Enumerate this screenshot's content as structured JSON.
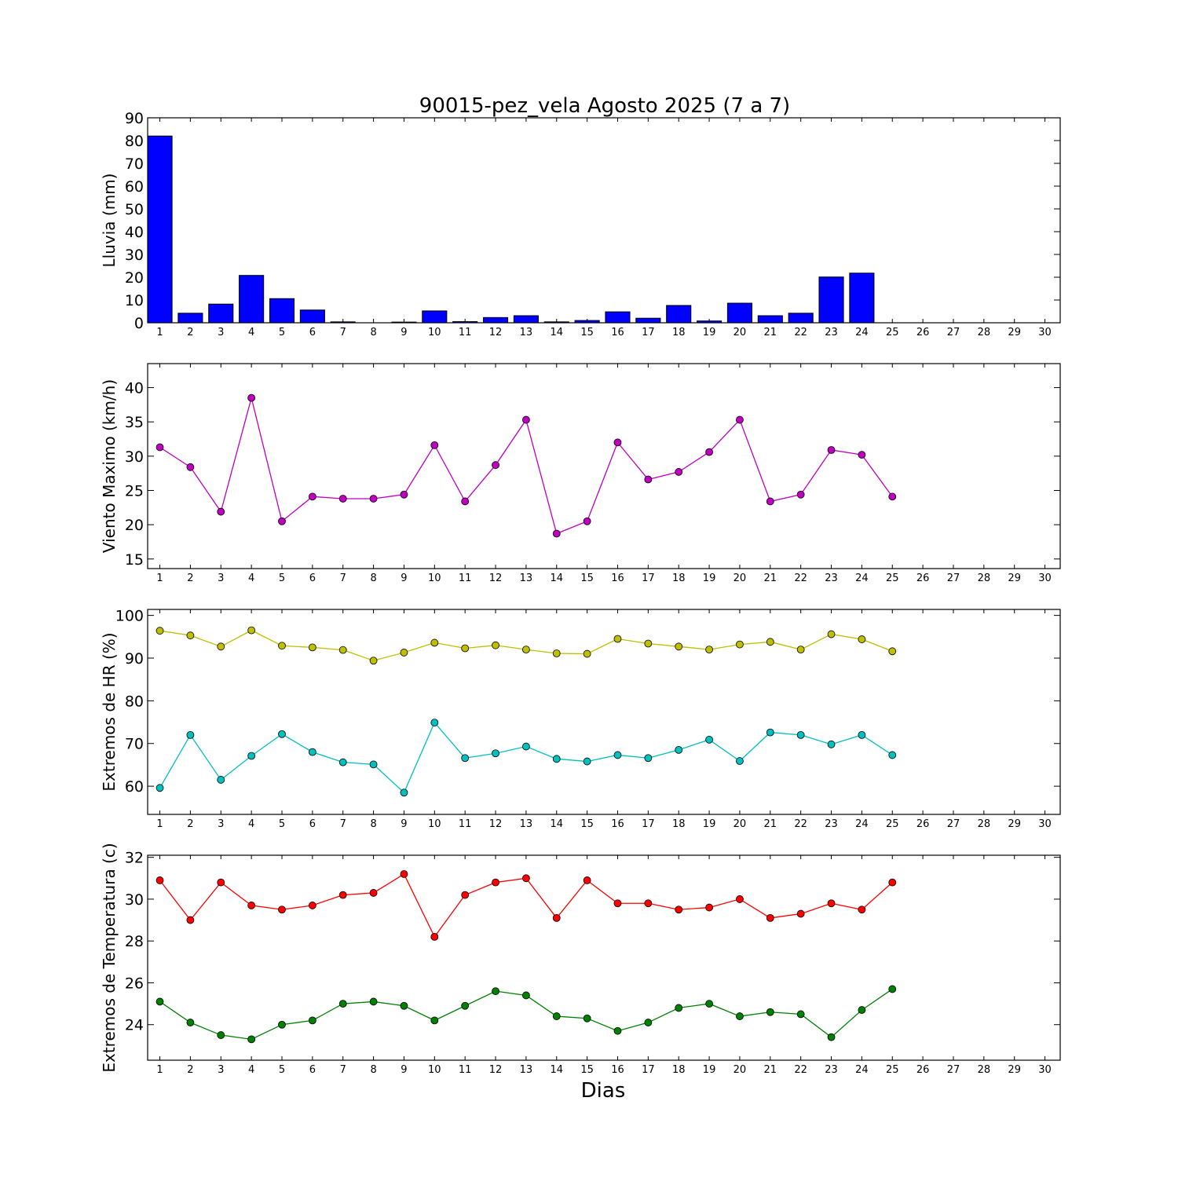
{
  "chart_data": [
    {
      "id": "rain",
      "type": "bar",
      "title": "90015-pez_vela Agosto 2025  (7 a 7)",
      "ylabel": "Lluvia (mm)",
      "xlabel": "",
      "categories": [
        "1",
        "2",
        "3",
        "4",
        "5",
        "6",
        "7",
        "8",
        "9",
        "10",
        "11",
        "12",
        "13",
        "14",
        "15",
        "16",
        "17",
        "18",
        "19",
        "20",
        "21",
        "22",
        "23",
        "24",
        "25",
        "26",
        "27",
        "28",
        "29",
        "30"
      ],
      "x": [
        1,
        2,
        3,
        4,
        5,
        6,
        7,
        8,
        9,
        10,
        11,
        12,
        13,
        14,
        15,
        16,
        17,
        18,
        19,
        20,
        21,
        22,
        23,
        24,
        25
      ],
      "values": [
        82,
        4.2,
        8.2,
        20.8,
        10.6,
        5.6,
        0.4,
        0,
        0.3,
        5.2,
        0.5,
        2.3,
        3.1,
        0.4,
        1.0,
        4.8,
        2.0,
        7.6,
        0.8,
        8.6,
        3.1,
        4.2,
        20.1,
        21.8,
        0
      ],
      "xlim": [
        0.6,
        30.5
      ],
      "ylim": [
        0,
        90
      ],
      "yticks": [
        0,
        10,
        20,
        30,
        40,
        50,
        60,
        70,
        80,
        90
      ],
      "color": "#0000ff"
    },
    {
      "id": "wind",
      "type": "line",
      "title": "",
      "ylabel": "Viento Maximo (km/h)",
      "xlabel": "",
      "categories": [
        "1",
        "2",
        "3",
        "4",
        "5",
        "6",
        "7",
        "8",
        "9",
        "10",
        "11",
        "12",
        "13",
        "14",
        "15",
        "16",
        "17",
        "18",
        "19",
        "20",
        "21",
        "22",
        "23",
        "24",
        "25",
        "26",
        "27",
        "28",
        "29",
        "30"
      ],
      "xlim": [
        0.6,
        30.5
      ],
      "ylim": [
        13.6,
        43.5
      ],
      "yticks": [
        15,
        20,
        25,
        30,
        35,
        40
      ],
      "series": [
        {
          "color": "#bf00bf",
          "x": [
            1,
            2,
            3,
            4,
            5,
            6,
            7,
            8,
            9,
            10,
            11,
            12,
            13,
            14,
            15,
            16,
            17,
            18,
            19,
            20,
            21,
            22,
            23,
            24,
            25
          ],
          "values": [
            31.3,
            28.4,
            21.9,
            38.5,
            20.5,
            24.1,
            23.8,
            23.8,
            24.4,
            31.6,
            23.4,
            28.7,
            35.3,
            18.7,
            20.5,
            32.0,
            26.6,
            27.7,
            30.6,
            35.3,
            23.4,
            24.4,
            30.9,
            30.2,
            24.1
          ]
        }
      ]
    },
    {
      "id": "humidity",
      "type": "line",
      "title": "",
      "ylabel": "Extremos de HR (%)",
      "xlabel": "",
      "categories": [
        "1",
        "2",
        "3",
        "4",
        "5",
        "6",
        "7",
        "8",
        "9",
        "10",
        "11",
        "12",
        "13",
        "14",
        "15",
        "16",
        "17",
        "18",
        "19",
        "20",
        "21",
        "22",
        "23",
        "24",
        "25",
        "26",
        "27",
        "28",
        "29",
        "30"
      ],
      "xlim": [
        0.6,
        30.5
      ],
      "ylim": [
        53.4,
        101.4
      ],
      "yticks": [
        60,
        70,
        80,
        90,
        100
      ],
      "series": [
        {
          "color": "#bfbf00",
          "x": [
            1,
            2,
            3,
            4,
            5,
            6,
            7,
            8,
            9,
            10,
            11,
            12,
            13,
            14,
            15,
            16,
            17,
            18,
            19,
            20,
            21,
            22,
            23,
            24,
            25
          ],
          "values": [
            96.4,
            95.3,
            92.7,
            96.5,
            92.9,
            92.5,
            91.9,
            89.4,
            91.3,
            93.6,
            92.3,
            93.0,
            92.0,
            91.1,
            91.0,
            94.5,
            93.4,
            92.7,
            92.0,
            93.2,
            93.8,
            92.0,
            95.6,
            94.4,
            91.6
          ]
        },
        {
          "color": "#00bfbf",
          "x": [
            1,
            2,
            3,
            4,
            5,
            6,
            7,
            8,
            9,
            10,
            11,
            12,
            13,
            14,
            15,
            16,
            17,
            18,
            19,
            20,
            21,
            22,
            23,
            24,
            25
          ],
          "values": [
            59.6,
            72.0,
            61.5,
            67.1,
            72.2,
            68.0,
            65.6,
            65.1,
            58.5,
            74.9,
            66.6,
            67.7,
            69.3,
            66.4,
            65.8,
            67.3,
            66.6,
            68.5,
            70.9,
            65.9,
            72.6,
            72.0,
            69.8,
            72.0,
            67.3
          ]
        }
      ]
    },
    {
      "id": "temperature",
      "type": "line",
      "title": "",
      "ylabel": "Extremos de Temperatura (c)",
      "xlabel": "Dias",
      "categories": [
        "1",
        "2",
        "3",
        "4",
        "5",
        "6",
        "7",
        "8",
        "9",
        "10",
        "11",
        "12",
        "13",
        "14",
        "15",
        "16",
        "17",
        "18",
        "19",
        "20",
        "21",
        "22",
        "23",
        "24",
        "25",
        "26",
        "27",
        "28",
        "29",
        "30"
      ],
      "xlim": [
        0.6,
        30.5
      ],
      "ylim": [
        22.3,
        32.1
      ],
      "yticks": [
        24,
        26,
        28,
        30,
        32
      ],
      "series": [
        {
          "color": "#ff0000",
          "x": [
            1,
            2,
            3,
            4,
            5,
            6,
            7,
            8,
            9,
            10,
            11,
            12,
            13,
            14,
            15,
            16,
            17,
            18,
            19,
            20,
            21,
            22,
            23,
            24,
            25
          ],
          "values": [
            30.9,
            29.0,
            30.8,
            29.7,
            29.5,
            29.7,
            30.2,
            30.3,
            31.2,
            28.2,
            30.2,
            30.8,
            31.0,
            29.1,
            30.9,
            29.8,
            29.8,
            29.5,
            29.6,
            30.0,
            29.1,
            29.3,
            29.8,
            29.5,
            30.8
          ]
        },
        {
          "color": "#008000",
          "x": [
            1,
            2,
            3,
            4,
            5,
            6,
            7,
            8,
            9,
            10,
            11,
            12,
            13,
            14,
            15,
            16,
            17,
            18,
            19,
            20,
            21,
            22,
            23,
            24,
            25
          ],
          "values": [
            25.1,
            24.1,
            23.5,
            23.3,
            24.0,
            24.2,
            25.0,
            25.1,
            24.9,
            24.2,
            24.9,
            25.6,
            25.4,
            24.4,
            24.3,
            23.7,
            24.1,
            24.8,
            25.0,
            24.4,
            24.6,
            24.5,
            23.4,
            24.7,
            25.7
          ]
        }
      ]
    }
  ]
}
